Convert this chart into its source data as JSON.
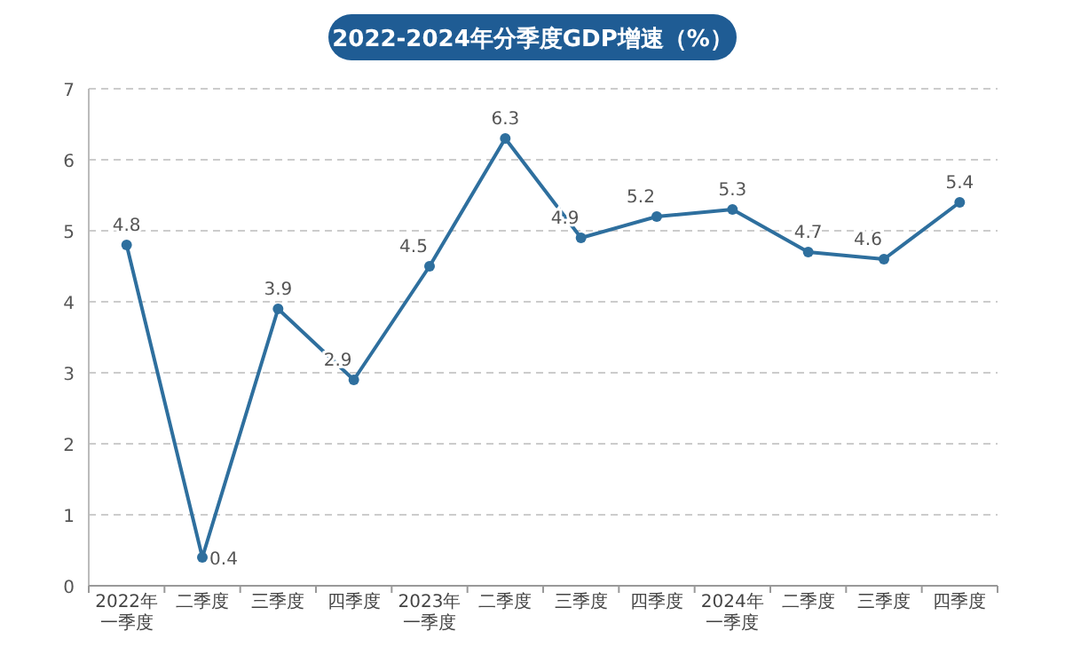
{
  "chart_data": {
    "type": "line",
    "title": "2022-2024年分季度GDP增速（%）",
    "categories": [
      "2022年一季度",
      "二季度",
      "三季度",
      "四季度",
      "2023年一季度",
      "二季度",
      "三季度",
      "四季度",
      "2024年一季度",
      "二季度",
      "三季度",
      "四季度"
    ],
    "series": [
      {
        "color": "#2e6f9e",
        "values": [
          4.8,
          0.4,
          3.9,
          2.9,
          4.5,
          6.3,
          4.9,
          5.2,
          5.3,
          4.7,
          4.6,
          5.4
        ]
      }
    ],
    "ylim": [
      0,
      7
    ],
    "yticks": [
      0,
      1,
      2,
      3,
      4,
      5,
      6,
      7
    ],
    "grid": "y",
    "marker": "circle",
    "data_labels": true
  }
}
